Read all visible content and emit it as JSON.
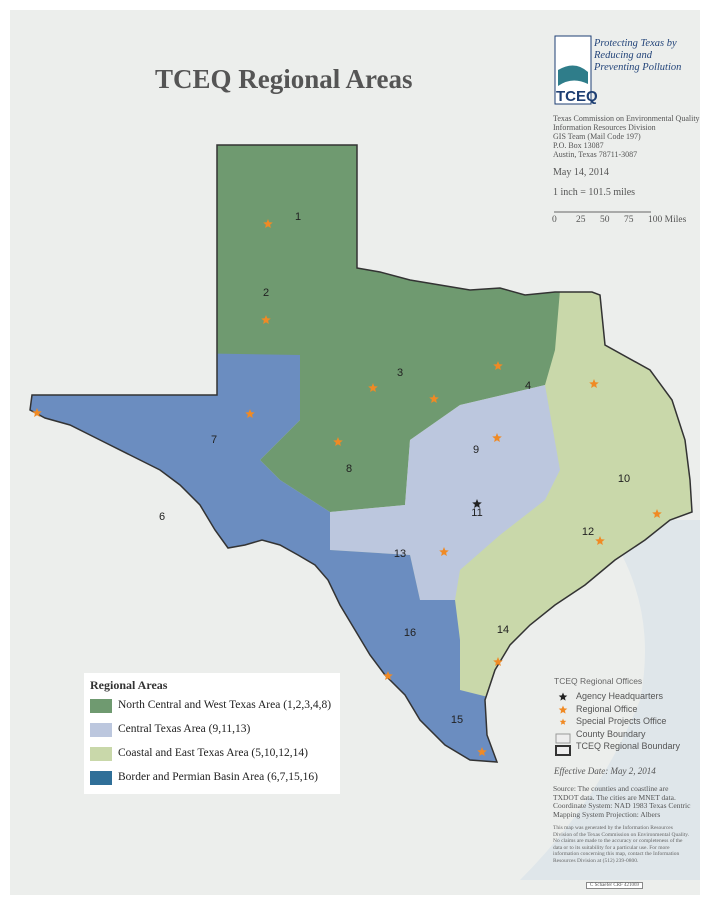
{
  "header": {
    "title": "TCEQ Regional Areas",
    "logo_tagline": "Protecting Texas by Reducing and Preventing Pollution",
    "logo_text": "TCEQ"
  },
  "agency": {
    "lines": [
      "Texas Commission on Environmental Quality",
      "Information Resources Division",
      "GIS Team (Mail Code 197)",
      "P.O. Box 13087",
      "Austin, Texas 78711-3087"
    ],
    "date": "May 14, 2014",
    "scale_text": "1 inch = 101.5 miles",
    "scale_labels": [
      "0",
      "25",
      "50",
      "75",
      "100 Miles"
    ]
  },
  "regions": [
    {
      "label": "1"
    },
    {
      "label": "2"
    },
    {
      "label": "3"
    },
    {
      "label": "4"
    },
    {
      "label": "6"
    },
    {
      "label": "7"
    },
    {
      "label": "8"
    },
    {
      "label": "9"
    },
    {
      "label": "10"
    },
    {
      "label": "11"
    },
    {
      "label": "12"
    },
    {
      "label": "13"
    },
    {
      "label": "14"
    },
    {
      "label": "15"
    },
    {
      "label": "16"
    }
  ],
  "legend": {
    "title": "Regional Areas",
    "items": [
      {
        "label": "North Central and West Texas Area (1,2,3,4,8)",
        "color": "#6f9a70"
      },
      {
        "label": "Central Texas Area (9,11,13)",
        "color": "#bcc7de"
      },
      {
        "label": "Coastal and East Texas Area (5,10,12,14)",
        "color": "#c9d8aa"
      },
      {
        "label": "Border and Permian Basin Area (6,7,15,16)",
        "color": "#2f6f98"
      }
    ]
  },
  "offices_legend": {
    "title": "TCEQ Regional Offices",
    "items": [
      "Agency Headquarters",
      "Regional Office",
      "Special Projects Office",
      "County Boundary",
      "TCEQ Regional Boundary"
    ],
    "effective_date": "Effective Date: May 2, 2014"
  },
  "notes": {
    "source": "Source: The counties and coastline are TXDOT data. The cities are MNET data. Coordinate System: NAD 1983 Texas Centric Mapping System Projection: Albers",
    "disclaimer": "This map was generated by the Information Resources Division of the Texas Commission on Environmental Quality. No claims are made to the accuracy or completeness of the data or to its suitability for a particular use. For more information concerning this map, contact the Information Resources Division at (512) 239-0800.",
    "credit": "C Schaefer CRF 421069"
  }
}
